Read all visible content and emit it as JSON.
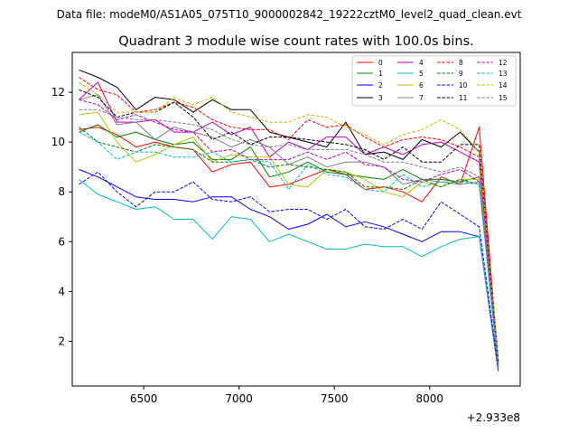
{
  "chart_data": {
    "type": "line",
    "suptitle": "Data file: modeM0/AS1A05_075T10_9000002842_19222cztM0_level2_quad_clean.evt",
    "title": "Quadrant 3 module wise count rates with 100.0s bins.",
    "xlabel": "",
    "ylabel": "",
    "x_offset_label": "+2.933e8",
    "xlim": [
      6125,
      8475
    ],
    "ylim": [
      0.2,
      13.6
    ],
    "x_ticks": [
      6500,
      7000,
      7500,
      8000
    ],
    "y_ticks": [
      2,
      4,
      6,
      8,
      10,
      12
    ],
    "grid": false,
    "legend_placement": "top-right",
    "x": [
      6160,
      6260,
      6360,
      6460,
      6560,
      6660,
      6760,
      6860,
      6960,
      7060,
      7160,
      7260,
      7360,
      7460,
      7560,
      7660,
      7760,
      7860,
      7960,
      8060,
      8160,
      8260,
      8360
    ],
    "series": [
      {
        "name": "0",
        "color": "#ff0000",
        "style": "solid",
        "values": [
          10.5,
          10.6,
          10.3,
          9.8,
          10.0,
          9.8,
          9.7,
          8.8,
          9.1,
          9.2,
          8.2,
          8.3,
          8.6,
          8.9,
          8.7,
          8.1,
          8.2,
          8.0,
          7.6,
          8.6,
          8.3,
          10.6,
          1.1
        ]
      },
      {
        "name": "1",
        "color": "#008000",
        "style": "solid",
        "values": [
          10.4,
          10.7,
          10.2,
          10.4,
          10.1,
          9.9,
          10.0,
          9.3,
          9.3,
          9.8,
          8.6,
          8.8,
          9.2,
          8.8,
          8.7,
          8.6,
          8.5,
          8.9,
          8.5,
          8.5,
          8.4,
          8.6,
          1.0
        ]
      },
      {
        "name": "2",
        "color": "#0000ff",
        "style": "solid",
        "values": [
          8.9,
          8.6,
          8.2,
          7.8,
          7.7,
          7.7,
          7.6,
          7.8,
          7.8,
          7.3,
          7.0,
          6.5,
          6.7,
          7.1,
          6.6,
          6.8,
          6.6,
          6.3,
          6.0,
          6.4,
          6.4,
          6.2,
          0.8
        ]
      },
      {
        "name": "3",
        "color": "#000000",
        "style": "solid",
        "values": [
          12.9,
          12.6,
          12.2,
          11.3,
          11.8,
          11.7,
          11.2,
          11.7,
          11.3,
          11.3,
          10.4,
          10.2,
          10.0,
          9.8,
          10.8,
          9.5,
          9.6,
          9.3,
          10.1,
          9.8,
          10.4,
          9.6,
          1.2
        ]
      },
      {
        "name": "4",
        "color": "#c000c0",
        "style": "solid",
        "values": [
          11.7,
          12.4,
          10.8,
          10.8,
          10.9,
          10.4,
          10.4,
          10.8,
          10.3,
          10.6,
          9.4,
          10.0,
          9.7,
          10.2,
          10.2,
          9.5,
          9.8,
          9.5,
          9.9,
          10.0,
          9.6,
          9.2,
          1.1
        ]
      },
      {
        "name": "5",
        "color": "#00bfbf",
        "style": "solid",
        "values": [
          8.5,
          7.9,
          7.6,
          7.3,
          7.4,
          6.9,
          6.9,
          6.1,
          7.0,
          6.9,
          6.0,
          6.3,
          6.0,
          5.7,
          5.7,
          5.9,
          5.8,
          5.8,
          5.4,
          5.8,
          6.1,
          6.2,
          0.9
        ]
      },
      {
        "name": "6",
        "color": "#bfbf00",
        "style": "solid",
        "values": [
          11.1,
          11.2,
          10.0,
          9.2,
          9.5,
          9.9,
          10.2,
          9.2,
          9.5,
          9.4,
          9.4,
          8.3,
          8.2,
          8.9,
          8.8,
          8.5,
          8.0,
          7.8,
          8.4,
          8.2,
          8.5,
          8.5,
          1.0
        ]
      },
      {
        "name": "7",
        "color": "#808080",
        "style": "solid",
        "values": [
          11.7,
          11.9,
          10.7,
          10.8,
          10.1,
          10.6,
          10.4,
          10.2,
          9.8,
          10.1,
          9.8,
          9.1,
          9.4,
          9.0,
          9.2,
          9.2,
          9.0,
          8.3,
          8.5,
          8.4,
          8.3,
          8.4,
          1.0
        ]
      },
      {
        "name": "8",
        "color": "#ff0000",
        "style": "dashed",
        "values": [
          12.6,
          12.1,
          11.9,
          11.2,
          11.3,
          11.6,
          11.4,
          10.9,
          10.6,
          10.5,
          10.5,
          10.1,
          10.9,
          10.6,
          10.7,
          10.2,
          9.8,
          10.1,
          10.2,
          10.1,
          9.8,
          9.4,
          1.4
        ]
      },
      {
        "name": "9",
        "color": "#008000",
        "style": "dashed",
        "values": [
          10.6,
          10.0,
          9.8,
          9.6,
          9.9,
          9.8,
          9.7,
          9.2,
          9.2,
          9.3,
          9.0,
          9.1,
          9.0,
          8.9,
          8.8,
          8.2,
          8.2,
          8.1,
          8.5,
          8.2,
          8.5,
          8.3,
          1.0
        ]
      },
      {
        "name": "10",
        "color": "#0000ff",
        "style": "dashed",
        "values": [
          8.3,
          8.8,
          8.0,
          7.4,
          8.0,
          8.0,
          8.4,
          7.7,
          7.6,
          7.8,
          7.2,
          7.3,
          7.3,
          6.9,
          7.3,
          6.6,
          6.5,
          6.9,
          6.5,
          7.6,
          7.1,
          6.6,
          0.9
        ]
      },
      {
        "name": "11",
        "color": "#000000",
        "style": "dashed",
        "values": [
          12.1,
          11.8,
          11.0,
          11.2,
          11.2,
          11.6,
          11.0,
          10.1,
          10.4,
          9.9,
          10.2,
          10.2,
          10.1,
          10.0,
          9.9,
          9.7,
          9.3,
          9.8,
          9.2,
          9.2,
          9.9,
          9.9,
          1.2
        ]
      },
      {
        "name": "12",
        "color": "#c000c0",
        "style": "dashed",
        "values": [
          11.7,
          11.5,
          10.9,
          11.1,
          10.8,
          10.5,
          10.4,
          9.6,
          9.7,
          9.3,
          9.3,
          9.3,
          9.6,
          9.3,
          9.6,
          9.1,
          9.0,
          8.5,
          8.4,
          8.7,
          8.9,
          8.4,
          1.0
        ]
      },
      {
        "name": "13",
        "color": "#00bfbf",
        "style": "dashed",
        "values": [
          10.4,
          10.0,
          9.3,
          9.6,
          9.6,
          9.4,
          9.4,
          9.6,
          9.2,
          9.3,
          9.2,
          8.1,
          9.1,
          8.7,
          8.6,
          8.1,
          8.0,
          8.7,
          8.2,
          8.4,
          8.4,
          8.3,
          0.9
        ]
      },
      {
        "name": "14",
        "color": "#bfbf00",
        "style": "dashed",
        "values": [
          12.4,
          11.9,
          11.2,
          11.2,
          11.2,
          11.8,
          11.5,
          11.8,
          11.2,
          11.0,
          10.8,
          10.8,
          11.1,
          11.0,
          10.6,
          10.3,
          9.9,
          10.3,
          10.5,
          10.9,
          10.5,
          9.6,
          1.3
        ]
      },
      {
        "name": "15",
        "color": "#808080",
        "style": "dashed",
        "values": [
          11.3,
          11.3,
          11.0,
          10.9,
          10.9,
          10.8,
          10.7,
          10.5,
          10.1,
          9.9,
          9.8,
          9.9,
          9.7,
          9.7,
          9.7,
          9.5,
          9.2,
          9.2,
          9.0,
          8.8,
          9.0,
          8.6,
          1.0
        ]
      }
    ]
  }
}
